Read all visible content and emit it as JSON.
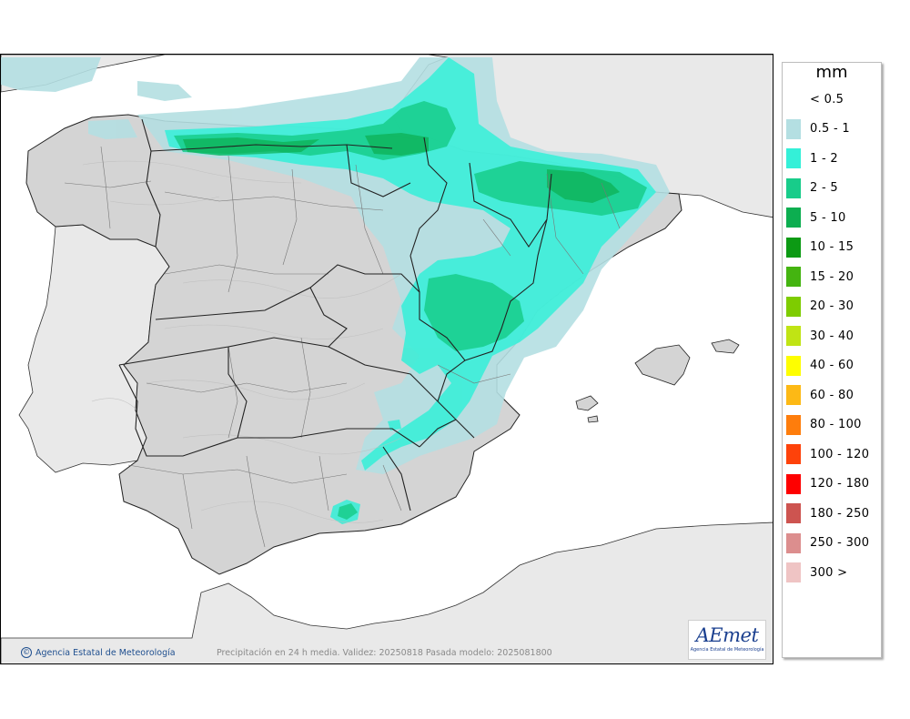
{
  "legend": {
    "unit": "mm",
    "classes": [
      {
        "label": "< 0.5",
        "color": "#ffffff"
      },
      {
        "label": "0.5 - 1",
        "color": "#b4dfe2"
      },
      {
        "label": "1 - 2",
        "color": "#34f0d8"
      },
      {
        "label": "2 - 5",
        "color": "#18cc8a"
      },
      {
        "label": "5 - 10",
        "color": "#0cae50"
      },
      {
        "label": "10 - 15",
        "color": "#0c9a14"
      },
      {
        "label": "15 - 20",
        "color": "#44b410"
      },
      {
        "label": "20 - 30",
        "color": "#7ecc00"
      },
      {
        "label": "30 - 40",
        "color": "#c0e414"
      },
      {
        "label": "40 - 60",
        "color": "#fefe00"
      },
      {
        "label": "60 - 80",
        "color": "#fdb915"
      },
      {
        "label": "80 - 100",
        "color": "#fe7d0c"
      },
      {
        "label": "100 - 120",
        "color": "#fe420a"
      },
      {
        "label": "120 - 180",
        "color": "#fe0000"
      },
      {
        "label": "180 - 250",
        "color": "#cd5450"
      },
      {
        "label": "250 - 300",
        "color": "#dc8e8e"
      },
      {
        "label": "300 >",
        "color": "#efc4c4"
      }
    ]
  },
  "footer": {
    "credit": "Agencia Estatal de Meteorología",
    "caption": "Precipitación en 24 h media. Validez: 20250818 Pasada modelo: 2025081800"
  },
  "logo": {
    "word": "AEmet",
    "subtitle": "Agencia Estatal de Meteorología"
  }
}
